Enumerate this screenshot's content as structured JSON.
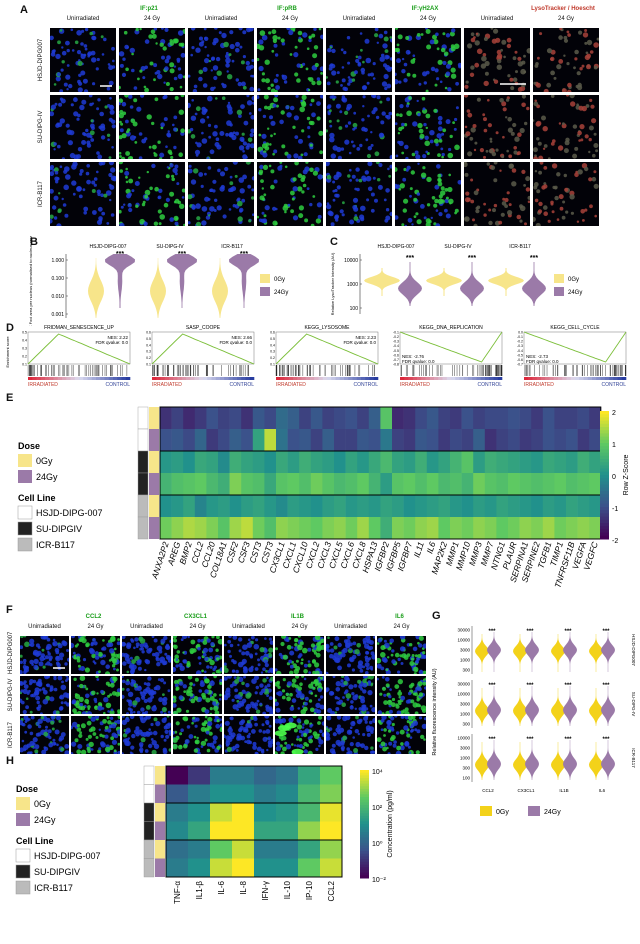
{
  "panels": {
    "A": "A",
    "B": "B",
    "C": "C",
    "D": "D",
    "E": "E",
    "F": "F",
    "G": "G",
    "H": "H"
  },
  "panel_a": {
    "markers": [
      "IF:p21",
      "IF:pRB",
      "IF:γH2AX",
      "LysoTracker / Hoescht"
    ],
    "conditions": [
      "Unirradiated",
      "24 Gy"
    ],
    "rows": [
      "HSJD-DIPG007",
      "SU-DIPG-IV",
      "ICR-B117"
    ]
  },
  "panel_f": {
    "markers": [
      "CCL2",
      "CX3CL1",
      "IL1B",
      "IL6"
    ],
    "conditions": [
      "Unirradiated",
      "24 Gy"
    ],
    "rows": [
      "HSJD-DIPG007",
      "SU-DIPG-IV",
      "ICR-B117"
    ]
  },
  "colors": {
    "gy0": "#f7e58a",
    "gy24": "#9b7aa8",
    "gsea": "#7cbf3a",
    "heat_low": "#440154",
    "heat_mid": "#21918c",
    "heat_high": "#fde725"
  },
  "legend": {
    "gy0": "0Gy",
    "gy24": "24Gy"
  },
  "chart_data": [
    {
      "id": "B",
      "type": "violin",
      "ylabel": "γH2AX Foci area per nucleus (normalised to nucleus area)",
      "yticks": [
        "1.000",
        "0.100",
        "0.010",
        "0.001"
      ],
      "groups": [
        "HSJD-DIPG-007",
        "SU-DIPG-IV",
        "ICR-B117"
      ],
      "significance": [
        "***",
        "***",
        "***"
      ]
    },
    {
      "id": "C",
      "type": "violin",
      "ylabel": "Relative LysoTracker Intensity (AU)",
      "yticks": [
        "10000",
        "1000",
        "100"
      ],
      "groups": [
        "HSJD-DIPG-007",
        "SU-DIPG-IV",
        "ICR-B117"
      ],
      "significance": [
        "***",
        "***",
        "***"
      ]
    },
    {
      "id": "D",
      "type": "line",
      "ylabel": "Enrichment score",
      "bottom_labels": [
        "IRRADIATED",
        "CONTROL"
      ],
      "gsea": [
        {
          "title": "FRIDMAN_SENESCENCE_UP",
          "nes": "NES: 2.22",
          "fdr": "FDR qvalue: 0.0",
          "yticks": [
            "0.5",
            "0.4",
            "0.3",
            "0.2",
            "0.1"
          ],
          "peak": 0.6,
          "dir": "up"
        },
        {
          "title": "SASP_COOPE",
          "nes": "NES: 2.66",
          "fdr": "FDR qvalue: 0.0",
          "yticks": [
            "0.6",
            "0.5",
            "0.4",
            "0.3",
            "0.2",
            "0.1"
          ],
          "peak": 0.65,
          "dir": "up"
        },
        {
          "title": "KEGG_LYSOSOME",
          "nes": "NES: 2.23",
          "fdr": "FDR qvalue: 0.0",
          "yticks": [
            "0.6",
            "0.5",
            "0.4",
            "0.3",
            "0.2",
            "0.1"
          ],
          "peak": 0.6,
          "dir": "up"
        },
        {
          "title": "KEGG_DNA_REPLICATION",
          "nes": "NES: -2.76",
          "fdr": "FDR qvalue: 0.0",
          "yticks": [
            "-0.1",
            "-0.2",
            "-0.3",
            "-0.4",
            "-0.5",
            "-0.6",
            "-0.7",
            "-0.8"
          ],
          "peak": -0.85,
          "dir": "down"
        },
        {
          "title": "KEGG_CELL_CYCLE",
          "nes": "NES: -2.73",
          "fdr": "FDR qvalue: 0.0",
          "yticks": [
            "0.0",
            "-0.1",
            "-0.2",
            "-0.3",
            "-0.4",
            "-0.5",
            "-0.6",
            "-0.7"
          ],
          "peak": -0.7,
          "dir": "down"
        }
      ]
    },
    {
      "id": "E",
      "type": "heatmap",
      "legend_title": "Row Z-Score",
      "colorbar_ticks": [
        "2",
        "1",
        "0",
        "-1",
        "-2"
      ],
      "annotation_titles": [
        "Dose",
        "Cell Line"
      ],
      "cell_lines": [
        "HSJD-DIPG-007",
        "SU-DIPGIV",
        "ICR-B117"
      ],
      "genes": [
        "ANXA2P2",
        "AREG",
        "BMP2",
        "CCL2",
        "CCL20",
        "COL18A1",
        "CSF2",
        "CSF3",
        "CST3",
        "CST3",
        "CX3CL1",
        "CXCL1",
        "CXCL10",
        "CXCL2",
        "CXCL3",
        "CXCL5",
        "CXCL6",
        "CXCL8",
        "HSPA13",
        "IGFBP2",
        "IGFBP5",
        "IGFBP7",
        "IL11",
        "IL6",
        "MAP2K2",
        "MMP1",
        "MMP10",
        "MMP3",
        "MMP7",
        "NTNG1",
        "PLAUR",
        "SERPINA1",
        "SERPINE2",
        "TGFB1",
        "TIMP1",
        "TNFRSF11B",
        "VEGFA",
        "VEGFC"
      ],
      "rows": [
        [
          -1.4,
          -1.2,
          -1.5,
          -1.3,
          -1.0,
          -1.2,
          -1.1,
          -1.4,
          -0.9,
          -1.1,
          -0.6,
          -0.8,
          -1.2,
          -0.9,
          -1.2,
          -1.1,
          -1.0,
          -1.2,
          -0.8,
          0.9,
          -1.5,
          -1.4,
          -1.1,
          -0.9,
          -1.2,
          -1.3,
          -1.0,
          -1.2,
          -1.1,
          -1.1,
          -1.0,
          -1.1,
          -1.3,
          -1.0,
          -1.2,
          -1.2,
          -1.1,
          -1.3
        ],
        [
          -1.0,
          -0.9,
          -1.1,
          -0.7,
          -1.3,
          -1.1,
          -0.8,
          -1.0,
          0.3,
          1.6,
          -0.5,
          -1.0,
          -0.9,
          -1.2,
          -0.8,
          -1.2,
          -1.2,
          -0.9,
          -1.0,
          -0.4,
          -1.2,
          -1.3,
          -0.9,
          -1.0,
          -1.3,
          -1.1,
          -1.2,
          -0.8,
          -1.4,
          -1.2,
          -1.1,
          -1.3,
          -1.2,
          -1.0,
          -1.1,
          -1.0,
          -1.3,
          -1.1
        ],
        [
          0.1,
          0.2,
          0.0,
          0.4,
          0.3,
          -0.1,
          0.5,
          0.3,
          0.2,
          0.0,
          0.4,
          0.2,
          0.5,
          0.3,
          0.2,
          0.0,
          0.3,
          0.1,
          0.4,
          0.7,
          0.3,
          0.2,
          0.5,
          0.1,
          0.3,
          0.6,
          0.9,
          0.2,
          0.5,
          0.4,
          0.3,
          0.2,
          0.1,
          0.4,
          0.3,
          0.2,
          0.5,
          0.3
        ],
        [
          0.6,
          0.8,
          0.9,
          1.0,
          0.7,
          0.5,
          1.2,
          0.9,
          0.8,
          0.4,
          0.9,
          1.0,
          0.8,
          1.1,
          0.9,
          0.7,
          0.8,
          1.0,
          0.6,
          0.2,
          0.9,
          1.0,
          0.8,
          1.0,
          0.7,
          0.8,
          0.6,
          1.1,
          0.9,
          0.8,
          1.0,
          0.9,
          0.8,
          0.9,
          1.0,
          0.8,
          0.9,
          1.0
        ],
        [
          0.0,
          0.1,
          0.3,
          -0.2,
          0.1,
          0.2,
          0.0,
          0.2,
          0.3,
          0.1,
          -0.1,
          0.2,
          0.1,
          0.0,
          0.2,
          0.3,
          0.1,
          0.2,
          0.1,
          0.3,
          0.2,
          0.0,
          0.1,
          0.2,
          0.3,
          0.1,
          0.0,
          0.2,
          0.1,
          0.3,
          0.2,
          0.1,
          0.0,
          0.2,
          0.1,
          0.3,
          0.2,
          0.1
        ],
        [
          1.1,
          1.3,
          1.5,
          1.4,
          1.2,
          0.9,
          1.4,
          1.6,
          1.1,
          0.8,
          1.3,
          1.2,
          1.1,
          1.0,
          1.2,
          1.3,
          1.1,
          1.4,
          1.0,
          0.5,
          1.2,
          1.1,
          1.3,
          1.4,
          1.0,
          1.2,
          1.1,
          1.3,
          1.2,
          1.0,
          1.1,
          1.3,
          1.2,
          1.4,
          1.1,
          1.2,
          1.3,
          1.2
        ]
      ]
    },
    {
      "id": "G",
      "type": "violin",
      "ylabel": "Relative fluorescence intensity (AU)",
      "categories": [
        "CCL2",
        "CX3CL1",
        "IL1B",
        "IL6"
      ],
      "rows": [
        "HSJD-DIPG007",
        "SU-DIPG-IV",
        "ICR-B117"
      ],
      "yticks": [
        [
          "30000",
          "10000",
          "3000",
          "1000",
          "300"
        ],
        [
          "30000",
          "10000",
          "3000",
          "1000",
          "300"
        ],
        [
          "10000",
          "3000",
          "1000",
          "300",
          "100"
        ]
      ],
      "significance": [
        "***",
        "***",
        "***",
        "***"
      ]
    },
    {
      "id": "H",
      "type": "heatmap",
      "legend_title": "Concentration (pg/ml)",
      "colorbar_ticks": [
        "10⁴",
        "10²",
        "10⁰",
        "10⁻²"
      ],
      "annotation_titles": [
        "Dose",
        "Cell Line"
      ],
      "cell_lines": [
        "HSJD-DIPG-007",
        "SU-DIPGIV",
        "ICR-B117"
      ],
      "cytokines": [
        "TNF-α",
        "IL1-β",
        "IL-6",
        "IL-8",
        "IFN-γ",
        "IL-10",
        "IP-10",
        "CCL2"
      ],
      "log10_values": [
        [
          -2.0,
          -1.0,
          0.5,
          0.5,
          0.0,
          0.3,
          1.5,
          2.5
        ],
        [
          -0.3,
          0.5,
          1.0,
          1.0,
          0.5,
          0.8,
          2.0,
          2.8
        ],
        [
          0.5,
          1.0,
          3.5,
          4.0,
          1.0,
          1.2,
          2.0,
          3.8
        ],
        [
          0.8,
          1.5,
          4.0,
          4.0,
          1.5,
          1.5,
          3.0,
          4.0
        ],
        [
          0.2,
          0.5,
          2.5,
          3.5,
          0.5,
          0.5,
          1.5,
          3.0
        ],
        [
          0.5,
          1.0,
          3.5,
          4.0,
          1.0,
          1.0,
          2.5,
          3.5
        ]
      ]
    }
  ]
}
